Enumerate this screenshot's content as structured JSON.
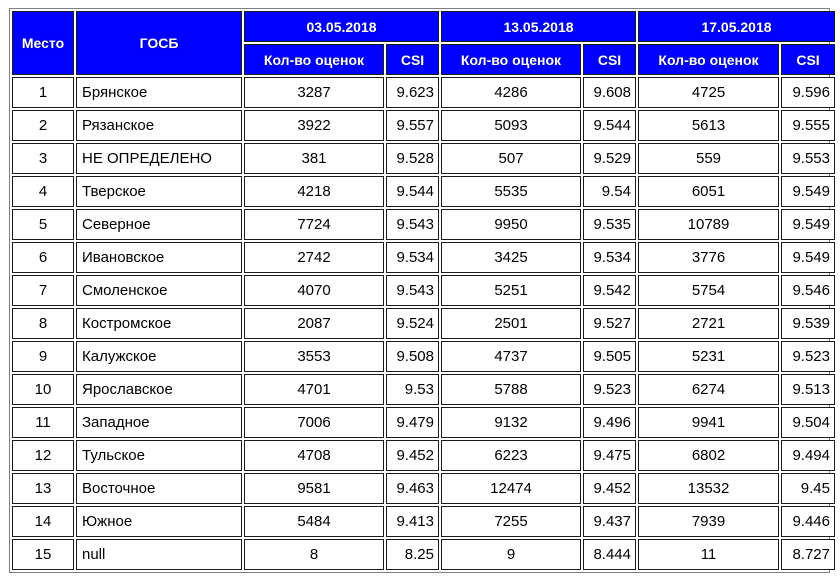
{
  "header": {
    "place": "Место",
    "gosb": "ГОСБ",
    "dates": [
      "03.05.2018",
      "13.05.2018",
      "17.05.2018"
    ],
    "count_label": "Кол-во оценок",
    "csi_label": "CSI"
  },
  "rows": [
    {
      "place": "1",
      "name": "Брянское",
      "values": [
        [
          "3287",
          "9.623"
        ],
        [
          "4286",
          "9.608"
        ],
        [
          "4725",
          "9.596"
        ]
      ]
    },
    {
      "place": "2",
      "name": "Рязанское",
      "values": [
        [
          "3922",
          "9.557"
        ],
        [
          "5093",
          "9.544"
        ],
        [
          "5613",
          "9.555"
        ]
      ]
    },
    {
      "place": "3",
      "name": "НЕ ОПРЕДЕЛЕНО",
      "values": [
        [
          "381",
          "9.528"
        ],
        [
          "507",
          "9.529"
        ],
        [
          "559",
          "9.553"
        ]
      ]
    },
    {
      "place": "4",
      "name": "Тверское",
      "values": [
        [
          "4218",
          "9.544"
        ],
        [
          "5535",
          "9.54"
        ],
        [
          "6051",
          "9.549"
        ]
      ]
    },
    {
      "place": "5",
      "name": "Северное",
      "values": [
        [
          "7724",
          "9.543"
        ],
        [
          "9950",
          "9.535"
        ],
        [
          "10789",
          "9.549"
        ]
      ]
    },
    {
      "place": "6",
      "name": "Ивановское",
      "values": [
        [
          "2742",
          "9.534"
        ],
        [
          "3425",
          "9.534"
        ],
        [
          "3776",
          "9.549"
        ]
      ]
    },
    {
      "place": "7",
      "name": "Смоленское",
      "values": [
        [
          "4070",
          "9.543"
        ],
        [
          "5251",
          "9.542"
        ],
        [
          "5754",
          "9.546"
        ]
      ]
    },
    {
      "place": "8",
      "name": "Костромское",
      "values": [
        [
          "2087",
          "9.524"
        ],
        [
          "2501",
          "9.527"
        ],
        [
          "2721",
          "9.539"
        ]
      ]
    },
    {
      "place": "9",
      "name": "Калужское",
      "values": [
        [
          "3553",
          "9.508"
        ],
        [
          "4737",
          "9.505"
        ],
        [
          "5231",
          "9.523"
        ]
      ]
    },
    {
      "place": "10",
      "name": "Ярославское",
      "values": [
        [
          "4701",
          "9.53"
        ],
        [
          "5788",
          "9.523"
        ],
        [
          "6274",
          "9.513"
        ]
      ]
    },
    {
      "place": "11",
      "name": "Западное",
      "values": [
        [
          "7006",
          "9.479"
        ],
        [
          "9132",
          "9.496"
        ],
        [
          "9941",
          "9.504"
        ]
      ]
    },
    {
      "place": "12",
      "name": "Тульское",
      "values": [
        [
          "4708",
          "9.452"
        ],
        [
          "6223",
          "9.475"
        ],
        [
          "6802",
          "9.494"
        ]
      ]
    },
    {
      "place": "13",
      "name": "Восточное",
      "values": [
        [
          "9581",
          "9.463"
        ],
        [
          "12474",
          "9.452"
        ],
        [
          "13532",
          "9.45"
        ]
      ]
    },
    {
      "place": "14",
      "name": "Южное",
      "values": [
        [
          "5484",
          "9.413"
        ],
        [
          "7255",
          "9.437"
        ],
        [
          "7939",
          "9.446"
        ]
      ]
    },
    {
      "place": "15",
      "name": "null",
      "values": [
        [
          "8",
          "8.25"
        ],
        [
          "9",
          "8.444"
        ],
        [
          "11",
          "8.727"
        ]
      ]
    }
  ],
  "colors": {
    "header_bg": "#0000ff",
    "header_text": "#ffffff",
    "border": "#1a1a1a"
  }
}
